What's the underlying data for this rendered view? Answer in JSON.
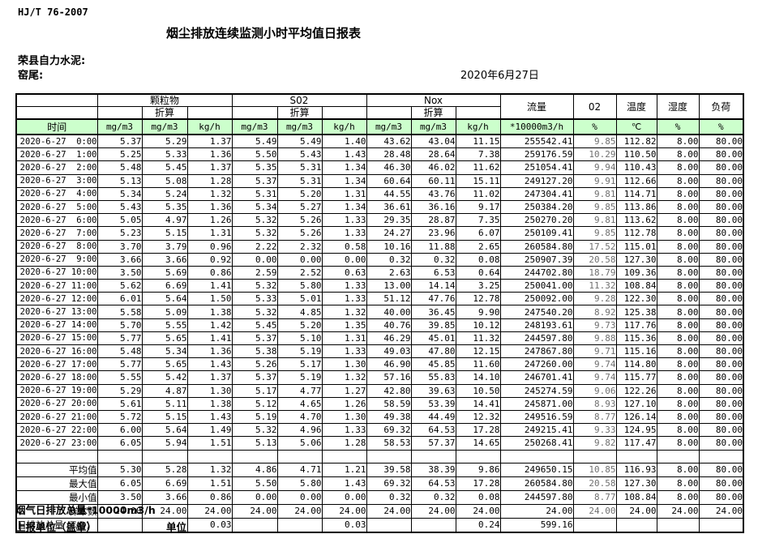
{
  "page": {
    "standard_code": "HJ/T  76-2007",
    "title": "烟尘排放连续监测小时平均值日报表",
    "company": "荣县自力水泥:",
    "site": "窑尾:",
    "date": "2020年6月27日"
  },
  "colors": {
    "header_green": "#ccffcc",
    "border": "#000000",
    "o2_text": "#6f6f6f"
  },
  "table": {
    "time_header": "时间",
    "groups": [
      {
        "label": "颗粒物",
        "sub": "折算"
      },
      {
        "label": "S02",
        "sub": "折算"
      },
      {
        "label": "Nox",
        "sub": "折算"
      }
    ],
    "group_units": [
      "mg/m3",
      "mg/m3",
      "kg/h"
    ],
    "single_columns": [
      {
        "label": "流量",
        "unit": "*10000m3/h"
      },
      {
        "label": "02",
        "unit": "%"
      },
      {
        "label": "温度",
        "unit": "℃"
      },
      {
        "label": "湿度",
        "unit": "%"
      },
      {
        "label": "负荷",
        "unit": "%"
      }
    ],
    "rows": [
      {
        "time": "2020-6-27  0:00",
        "values": [
          "5.37",
          "5.29",
          "1.37",
          "5.49",
          "5.49",
          "1.40",
          "43.62",
          "43.04",
          "11.15",
          "255542.41",
          "9.85",
          "112.82",
          "8.00",
          "80.00"
        ]
      },
      {
        "time": "2020-6-27  1:00",
        "values": [
          "5.25",
          "5.33",
          "1.36",
          "5.50",
          "5.43",
          "1.43",
          "28.48",
          "28.64",
          "7.38",
          "259176.59",
          "10.29",
          "110.50",
          "8.00",
          "80.00"
        ]
      },
      {
        "time": "2020-6-27  2:00",
        "values": [
          "5.48",
          "5.45",
          "1.37",
          "5.35",
          "5.31",
          "1.34",
          "46.30",
          "46.02",
          "11.62",
          "251054.41",
          "9.94",
          "110.43",
          "8.00",
          "80.00"
        ]
      },
      {
        "time": "2020-6-27  3:00",
        "values": [
          "5.13",
          "5.08",
          "1.28",
          "5.37",
          "5.31",
          "1.34",
          "60.64",
          "60.11",
          "15.11",
          "249127.20",
          "9.91",
          "112.66",
          "8.00",
          "80.00"
        ]
      },
      {
        "time": "2020-6-27  4:00",
        "values": [
          "5.34",
          "5.24",
          "1.32",
          "5.31",
          "5.20",
          "1.31",
          "44.55",
          "43.76",
          "11.02",
          "247304.41",
          "9.81",
          "114.71",
          "8.00",
          "80.00"
        ]
      },
      {
        "time": "2020-6-27  5:00",
        "values": [
          "5.43",
          "5.35",
          "1.36",
          "5.34",
          "5.27",
          "1.34",
          "36.61",
          "36.16",
          "9.17",
          "250384.20",
          "9.85",
          "113.86",
          "8.00",
          "80.00"
        ]
      },
      {
        "time": "2020-6-27  6:00",
        "values": [
          "5.05",
          "4.97",
          "1.26",
          "5.32",
          "5.26",
          "1.33",
          "29.35",
          "28.87",
          "7.35",
          "250270.20",
          "9.81",
          "113.62",
          "8.00",
          "80.00"
        ]
      },
      {
        "time": "2020-6-27  7:00",
        "values": [
          "5.23",
          "5.15",
          "1.31",
          "5.32",
          "5.26",
          "1.33",
          "24.27",
          "23.96",
          "6.07",
          "250109.41",
          "9.85",
          "112.78",
          "8.00",
          "80.00"
        ]
      },
      {
        "time": "2020-6-27  8:00",
        "values": [
          "3.70",
          "3.79",
          "0.96",
          "2.22",
          "2.32",
          "0.58",
          "10.16",
          "11.88",
          "2.65",
          "260584.80",
          "17.52",
          "115.01",
          "8.00",
          "80.00"
        ]
      },
      {
        "time": "2020-6-27  9:00",
        "values": [
          "3.66",
          "3.66",
          "0.92",
          "0.00",
          "0.00",
          "0.00",
          "0.32",
          "0.32",
          "0.08",
          "250907.39",
          "20.58",
          "127.30",
          "8.00",
          "80.00"
        ]
      },
      {
        "time": "2020-6-27 10:00",
        "values": [
          "3.50",
          "5.69",
          "0.86",
          "2.59",
          "2.52",
          "0.63",
          "2.63",
          "6.53",
          "0.64",
          "244702.80",
          "18.79",
          "109.36",
          "8.00",
          "80.00"
        ]
      },
      {
        "time": "2020-6-27 11:00",
        "values": [
          "5.62",
          "6.69",
          "1.41",
          "5.32",
          "5.80",
          "1.33",
          "13.00",
          "14.14",
          "3.25",
          "250041.00",
          "11.32",
          "108.84",
          "8.00",
          "80.00"
        ]
      },
      {
        "time": "2020-6-27 12:00",
        "values": [
          "6.01",
          "5.64",
          "1.50",
          "5.33",
          "5.01",
          "1.33",
          "51.12",
          "47.76",
          "12.78",
          "250092.00",
          "9.28",
          "122.30",
          "8.00",
          "80.00"
        ]
      },
      {
        "time": "2020-6-27 13:00",
        "values": [
          "5.58",
          "5.09",
          "1.38",
          "5.32",
          "4.85",
          "1.32",
          "40.00",
          "36.45",
          "9.90",
          "247540.20",
          "8.92",
          "125.38",
          "8.00",
          "80.00"
        ]
      },
      {
        "time": "2020-6-27 14:00",
        "values": [
          "5.70",
          "5.55",
          "1.42",
          "5.45",
          "5.20",
          "1.35",
          "40.76",
          "39.85",
          "10.12",
          "248193.61",
          "9.73",
          "117.76",
          "8.00",
          "80.00"
        ]
      },
      {
        "time": "2020-6-27 15:00",
        "values": [
          "5.77",
          "5.65",
          "1.41",
          "5.37",
          "5.10",
          "1.31",
          "46.29",
          "45.01",
          "11.32",
          "244597.80",
          "9.88",
          "115.36",
          "8.00",
          "80.00"
        ]
      },
      {
        "time": "2020-6-27 16:00",
        "values": [
          "5.48",
          "5.34",
          "1.36",
          "5.38",
          "5.19",
          "1.33",
          "49.03",
          "47.80",
          "12.15",
          "247867.80",
          "9.71",
          "115.16",
          "8.00",
          "80.00"
        ]
      },
      {
        "time": "2020-6-27 17:00",
        "values": [
          "5.77",
          "5.65",
          "1.43",
          "5.26",
          "5.17",
          "1.30",
          "46.90",
          "45.85",
          "11.60",
          "247260.00",
          "9.74",
          "114.80",
          "8.00",
          "80.00"
        ]
      },
      {
        "time": "2020-6-27 18:00",
        "values": [
          "5.55",
          "5.42",
          "1.37",
          "5.37",
          "5.19",
          "1.32",
          "57.16",
          "55.83",
          "14.10",
          "246701.41",
          "9.74",
          "115.77",
          "8.00",
          "80.00"
        ]
      },
      {
        "time": "2020-6-27 19:00",
        "values": [
          "5.29",
          "4.87",
          "1.30",
          "5.17",
          "4.77",
          "1.27",
          "42.80",
          "39.63",
          "10.50",
          "245274.59",
          "9.06",
          "122.26",
          "8.00",
          "80.00"
        ]
      },
      {
        "time": "2020-6-27 20:00",
        "values": [
          "5.61",
          "5.11",
          "1.38",
          "5.12",
          "4.65",
          "1.26",
          "58.59",
          "53.39",
          "14.41",
          "245871.00",
          "8.93",
          "127.10",
          "8.00",
          "80.00"
        ]
      },
      {
        "time": "2020-6-27 21:00",
        "values": [
          "5.72",
          "5.15",
          "1.43",
          "5.19",
          "4.70",
          "1.30",
          "49.38",
          "44.49",
          "12.32",
          "249516.59",
          "8.77",
          "126.14",
          "8.00",
          "80.00"
        ]
      },
      {
        "time": "2020-6-27 22:00",
        "values": [
          "6.00",
          "5.64",
          "1.49",
          "5.32",
          "4.96",
          "1.33",
          "69.32",
          "64.53",
          "17.28",
          "249215.41",
          "9.33",
          "124.95",
          "8.00",
          "80.00"
        ]
      },
      {
        "time": "2020-6-27 23:00",
        "values": [
          "6.05",
          "5.94",
          "1.51",
          "5.13",
          "5.06",
          "1.28",
          "58.53",
          "57.37",
          "14.65",
          "250268.41",
          "9.82",
          "117.47",
          "8.00",
          "80.00"
        ]
      }
    ],
    "summary": [
      {
        "label": "",
        "values": [
          "",
          "",
          "",
          "",
          "",
          "",
          "",
          "",
          "",
          "",
          "",
          "",
          "",
          ""
        ]
      },
      {
        "label": "平均值",
        "values": [
          "5.30",
          "5.28",
          "1.32",
          "4.86",
          "4.71",
          "1.21",
          "39.58",
          "38.39",
          "9.86",
          "249650.15",
          "10.85",
          "116.93",
          "8.00",
          "80.00"
        ]
      },
      {
        "label": "最大值",
        "values": [
          "6.05",
          "6.69",
          "1.51",
          "5.50",
          "5.80",
          "1.43",
          "69.32",
          "64.53",
          "17.28",
          "260584.80",
          "20.58",
          "127.30",
          "8.00",
          "80.00"
        ]
      },
      {
        "label": "最小值",
        "values": [
          "3.50",
          "3.66",
          "0.86",
          "0.00",
          "0.00",
          "0.00",
          "0.32",
          "0.32",
          "0.08",
          "244597.80",
          "8.77",
          "108.84",
          "8.00",
          "80.00"
        ]
      },
      {
        "label": "样本数",
        "values": [
          "24.00",
          "24.00",
          "24.00",
          "24.00",
          "24.00",
          "24.00",
          "24.00",
          "24.00",
          "24.00",
          "24.00",
          "24.00",
          "24.00",
          "24.00",
          "24.00"
        ]
      },
      {
        "label": "日排放总量 (T/D)",
        "label_align": "left",
        "values": [
          "",
          "",
          "0.03",
          "",
          "",
          "0.03",
          "",
          "",
          "0.24",
          "599.16",
          "",
          "",
          "",
          ""
        ]
      }
    ]
  },
  "footer": {
    "note": "烟气日排放总量*10000m3/h",
    "report_unit_label": "上报单位（盖章）",
    "unit_label": "单位"
  }
}
